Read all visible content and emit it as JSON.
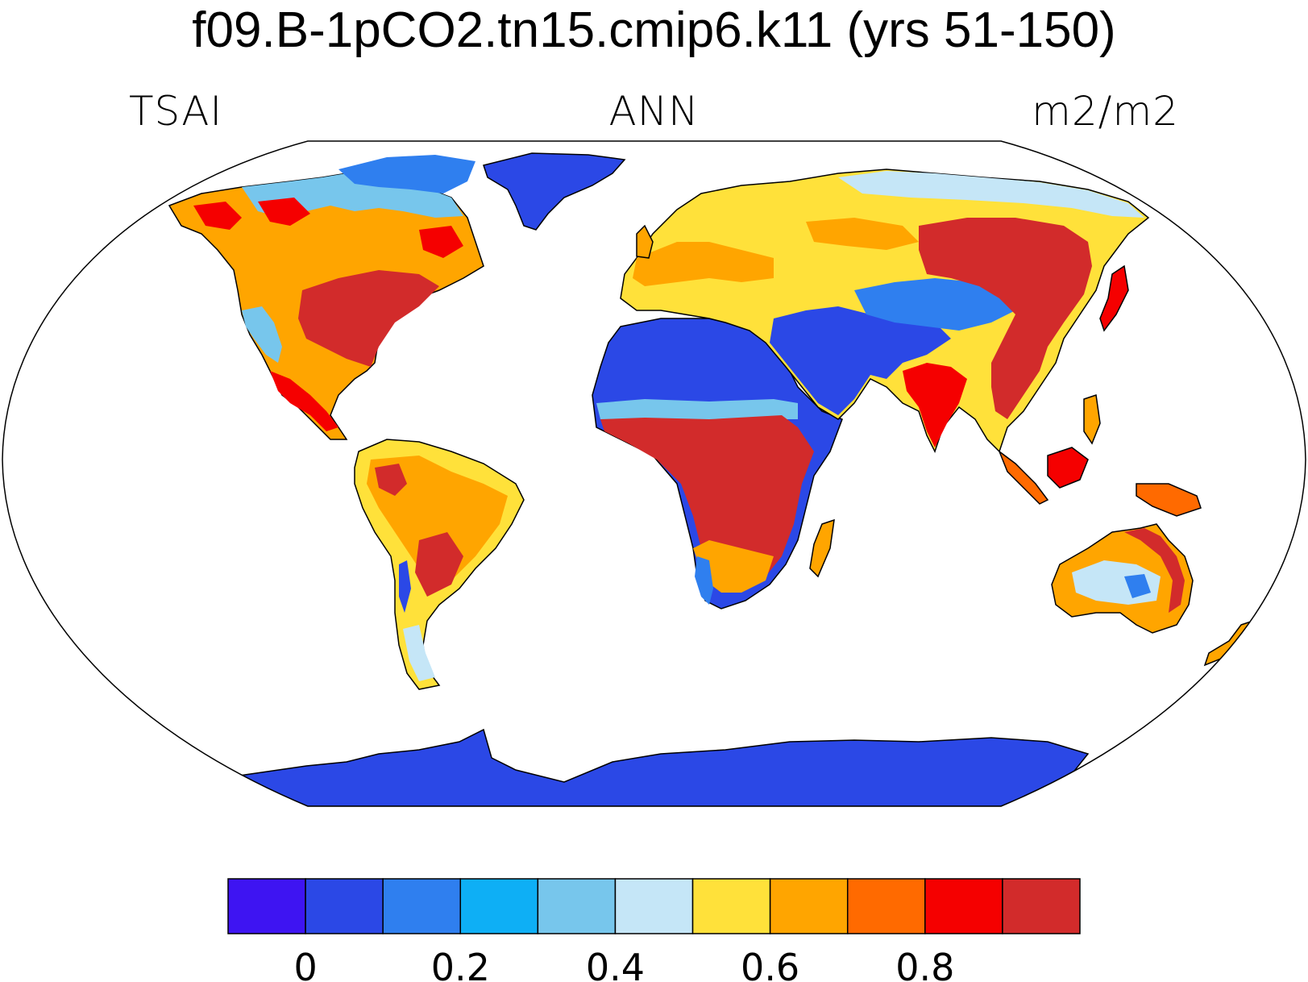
{
  "title": "f09.B-1pCO2.tn15.cmip6.k11 (yrs 51-150)",
  "variable": "TSAI",
  "season": "ANN",
  "units": "m2/m2",
  "colorbar": {
    "colors": [
      "#3e14f2",
      "#2b48e6",
      "#2f7fef",
      "#0eaff5",
      "#77c6ec",
      "#c5e6f7",
      "#ffe13a",
      "#ffa500",
      "#ff6a00",
      "#f50000",
      "#d22b2b"
    ],
    "tick_labels": [
      "0",
      "0.2",
      "0.4",
      "0.6",
      "0.8"
    ]
  },
  "palette": {
    "ice": "#2b48e6",
    "desert_blue": "#2b48e6",
    "ocean": "#ffffff"
  }
}
